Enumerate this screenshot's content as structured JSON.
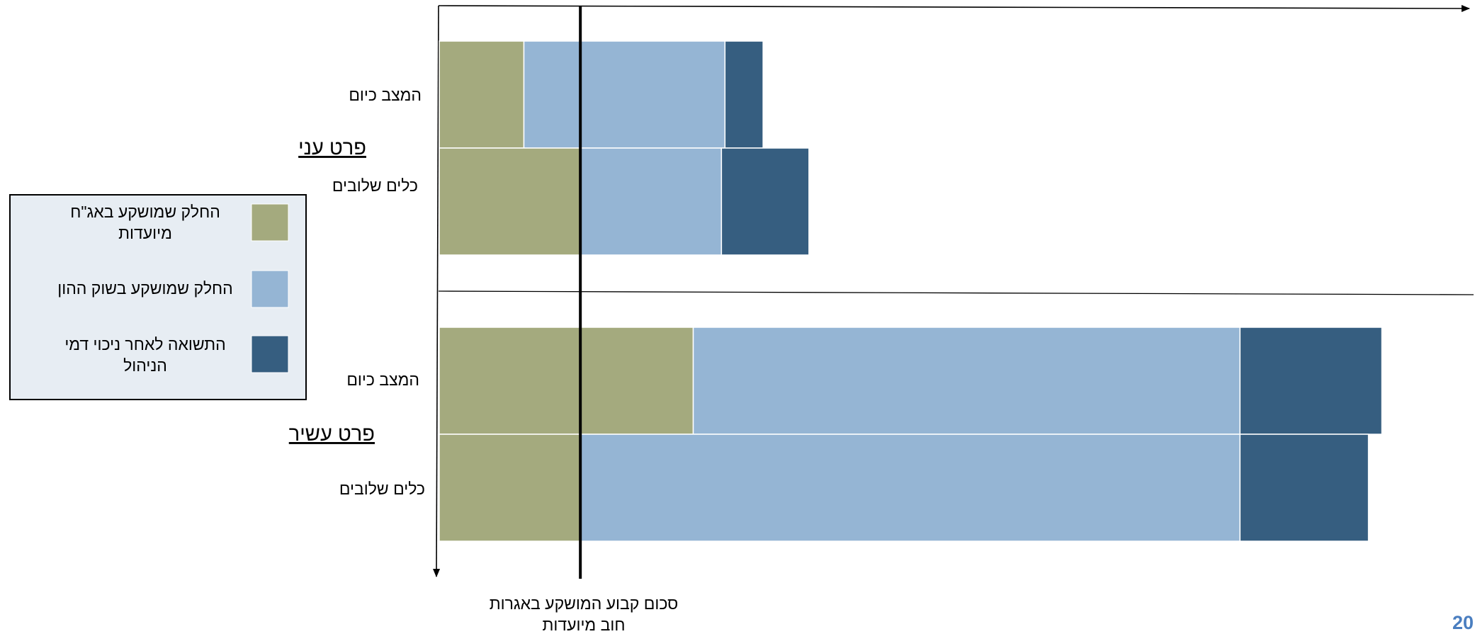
{
  "chart_data": {
    "type": "bar",
    "orientation": "horizontal",
    "stacked": true,
    "groups": [
      {
        "name": "פרט עני",
        "rows": [
          {
            "label": "המצב כיום",
            "values": [
              12.0,
              28.5,
              5.4
            ]
          },
          {
            "label": "כלים שלובים",
            "values": [
              20.0,
              20.0,
              12.4
            ]
          }
        ]
      },
      {
        "name": "פרט עשיר",
        "rows": [
          {
            "label": "המצב כיום",
            "values": [
              36.0,
              77.5,
              20.1
            ]
          },
          {
            "label": "כלים שלובים",
            "values": [
              20.0,
              93.5,
              18.2
            ]
          }
        ]
      }
    ],
    "series": [
      {
        "name": "החלק שמושקע באג\"ח מיועדות",
        "color": "#a4aa7e"
      },
      {
        "name": "החלק שמושקע בשוק ההון",
        "color": "#95b5d4"
      },
      {
        "name": "התשואה לאחר ניכוי דמי הניהול",
        "color": "#365e80"
      }
    ],
    "reference_line": {
      "value": 20,
      "label": "סכום קבוע המושקע באגרות חוב מיועדות"
    },
    "xlim": [
      0,
      146
    ],
    "legend_position": "left",
    "grid": false
  },
  "legend": {
    "background": "#e7edf3",
    "border": "#000000"
  },
  "page_number": "20"
}
